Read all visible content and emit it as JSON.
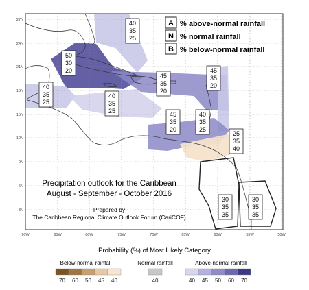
{
  "map": {
    "title_line1": "Precipitation outlook for the Caribbean",
    "title_line2": "August - September - October 2016",
    "prepared_line1": "Prepared by",
    "prepared_line2": "The Caribbean Regional Climate Outlook Forum (CariCOF)"
  },
  "axes": {
    "lat_labels": [
      "27N",
      "24N",
      "21N",
      "18N",
      "15N",
      "12N",
      "9N",
      "6N",
      "3N"
    ],
    "lon_labels": [
      "90W",
      "85W",
      "80W",
      "75W",
      "70W",
      "65W",
      "60W",
      "55W",
      "50W"
    ]
  },
  "legend_key": [
    {
      "letter": "A",
      "text": "% above-normal rainfall"
    },
    {
      "letter": "N",
      "text": "% normal rainfall"
    },
    {
      "letter": "B",
      "text": "% below-normal rainfall"
    }
  ],
  "forecast_boxes": [
    {
      "a": "40",
      "n": "35",
      "b": "25"
    },
    {
      "a": "50",
      "n": "30",
      "b": "20"
    },
    {
      "a": "40",
      "n": "35",
      "b": "25"
    },
    {
      "a": "40",
      "n": "35",
      "b": "25"
    },
    {
      "a": "45",
      "n": "35",
      "b": "20"
    },
    {
      "a": "45",
      "n": "35",
      "b": "20"
    },
    {
      "a": "45",
      "n": "35",
      "b": "20"
    },
    {
      "a": "40",
      "n": "35",
      "b": "25"
    },
    {
      "a": "25",
      "n": "35",
      "b": "40"
    },
    {
      "a": "30",
      "n": "35",
      "b": "35"
    },
    {
      "a": "30",
      "n": "35",
      "b": "35"
    }
  ],
  "colorbar": {
    "title": "Probability (%) of Most Likely Category",
    "below": {
      "label": "Below-normal rainfall",
      "ticks": [
        "70",
        "60",
        "50",
        "45",
        "40"
      ],
      "colors": [
        "#7a5523",
        "#a27540",
        "#c8a070",
        "#e6c9a2",
        "#f6e6cf"
      ]
    },
    "normal": {
      "label": "Normal rainfall",
      "ticks": [
        "40"
      ],
      "colors": [
        "#c8c8c8"
      ]
    },
    "above": {
      "label": "Above-normal rainfall",
      "ticks": [
        "40",
        "45",
        "50",
        "60",
        "70"
      ],
      "colors": [
        "#d7d6ef",
        "#b3b1df",
        "#8f8cc9",
        "#6b67b0",
        "#3c3a86"
      ]
    }
  }
}
